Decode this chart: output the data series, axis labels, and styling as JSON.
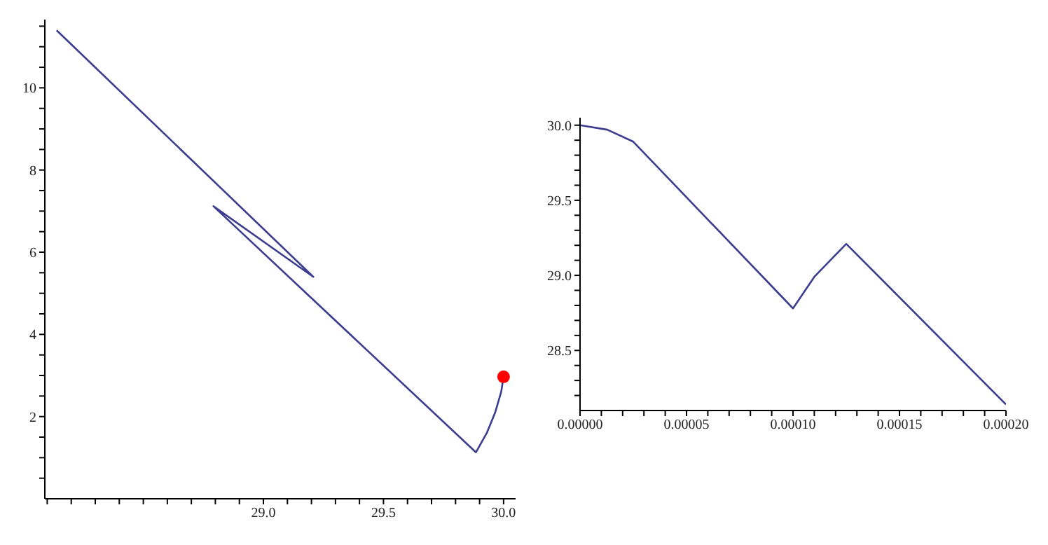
{
  "chart_data": [
    {
      "type": "line",
      "marker": "none",
      "xlim": [
        28.09,
        30.05
      ],
      "ylim": [
        0,
        11.66
      ],
      "xticks": [
        {
          "value": 28.1,
          "label": null
        },
        {
          "value": 28.2,
          "label": null
        },
        {
          "value": 28.3,
          "label": null
        },
        {
          "value": 28.4,
          "label": null
        },
        {
          "value": 28.5,
          "label": null
        },
        {
          "value": 28.6,
          "label": null
        },
        {
          "value": 28.7,
          "label": null
        },
        {
          "value": 28.8,
          "label": null
        },
        {
          "value": 28.9,
          "label": null
        },
        {
          "value": 29.0,
          "label": "29.0"
        },
        {
          "value": 29.1,
          "label": null
        },
        {
          "value": 29.2,
          "label": null
        },
        {
          "value": 29.3,
          "label": null
        },
        {
          "value": 29.4,
          "label": null
        },
        {
          "value": 29.5,
          "label": "29.5"
        },
        {
          "value": 29.6,
          "label": null
        },
        {
          "value": 29.7,
          "label": null
        },
        {
          "value": 29.8,
          "label": null
        },
        {
          "value": 29.9,
          "label": null
        },
        {
          "value": 30.0,
          "label": "30.0"
        }
      ],
      "yticks": [
        {
          "value": 0.5,
          "label": null
        },
        {
          "value": 1,
          "label": null
        },
        {
          "value": 1.5,
          "label": null
        },
        2,
        {
          "value": 2.5,
          "label": null
        },
        {
          "value": 3,
          "label": null
        },
        {
          "value": 3.5,
          "label": null
        },
        4,
        {
          "value": 4.5,
          "label": null
        },
        {
          "value": 5,
          "label": null
        },
        {
          "value": 5.5,
          "label": null
        },
        6,
        {
          "value": 6.5,
          "label": null
        },
        {
          "value": 7,
          "label": null
        },
        {
          "value": 7.5,
          "label": null
        },
        8,
        {
          "value": 8.5,
          "label": null
        },
        {
          "value": 9,
          "label": null
        },
        {
          "value": 9.5,
          "label": null
        },
        10,
        {
          "value": 10.5,
          "label": null
        },
        {
          "value": 11,
          "label": null
        },
        {
          "value": 11.5,
          "label": null
        }
      ],
      "series": [
        {
          "color": "#3d3d8f",
          "x": [
            28.139,
            29.208,
            28.792,
            29.885,
            29.93,
            29.965,
            29.99,
            30.0
          ],
          "values": [
            11.4,
            5.4,
            7.12,
            1.13,
            1.6,
            2.1,
            2.6,
            2.97
          ]
        },
        {
          "type": "scatter",
          "marker": "circle",
          "color": "#ff0000",
          "x": [
            30.0
          ],
          "values": [
            2.97
          ]
        }
      ]
    },
    {
      "type": "line",
      "marker": "none",
      "xlim": [
        0,
        0.0002
      ],
      "ylim": [
        28.1,
        30.05
      ],
      "xticks": [
        {
          "value": 0,
          "label": "0.00000"
        },
        {
          "value": 1e-05,
          "label": null
        },
        {
          "value": 2e-05,
          "label": null
        },
        {
          "value": 3e-05,
          "label": null
        },
        {
          "value": 4e-05,
          "label": null
        },
        {
          "value": 5e-05,
          "label": "0.00005"
        },
        {
          "value": 6e-05,
          "label": null
        },
        {
          "value": 7e-05,
          "label": null
        },
        {
          "value": 8e-05,
          "label": null
        },
        {
          "value": 9e-05,
          "label": null
        },
        {
          "value": 0.0001,
          "label": "0.00010"
        },
        {
          "value": 0.00011,
          "label": null
        },
        {
          "value": 0.00012,
          "label": null
        },
        {
          "value": 0.00013,
          "label": null
        },
        {
          "value": 0.00014,
          "label": null
        },
        {
          "value": 0.00015,
          "label": "0.00015"
        },
        {
          "value": 0.00016,
          "label": null
        },
        {
          "value": 0.00017,
          "label": null
        },
        {
          "value": 0.00018,
          "label": null
        },
        {
          "value": 0.00019,
          "label": null
        },
        {
          "value": 0.0002,
          "label": "0.00020"
        }
      ],
      "yticks": [
        {
          "value": 28.2,
          "label": null
        },
        {
          "value": 28.3,
          "label": null
        },
        {
          "value": 28.4,
          "label": null
        },
        28.5,
        {
          "value": 28.6,
          "label": null
        },
        {
          "value": 28.7,
          "label": null
        },
        {
          "value": 28.8,
          "label": null
        },
        {
          "value": 28.9,
          "label": null
        },
        {
          "value": 29.0,
          "label": "29.0"
        },
        {
          "value": 29.1,
          "label": null
        },
        {
          "value": 29.2,
          "label": null
        },
        {
          "value": 29.3,
          "label": null
        },
        {
          "value": 29.4,
          "label": null
        },
        29.5,
        {
          "value": 29.6,
          "label": null
        },
        {
          "value": 29.7,
          "label": null
        },
        {
          "value": 29.8,
          "label": null
        },
        {
          "value": 29.9,
          "label": null
        },
        {
          "value": 30.0,
          "label": "30.0"
        }
      ],
      "series": [
        {
          "color": "#3d3d8f",
          "x": [
            0,
            1.28e-05,
            2.5e-05,
            0.0001,
            0.00011,
            0.000125,
            0.0002
          ],
          "values": [
            30.0,
            29.97,
            29.89,
            28.78,
            28.99,
            29.21,
            28.14
          ]
        }
      ]
    }
  ]
}
